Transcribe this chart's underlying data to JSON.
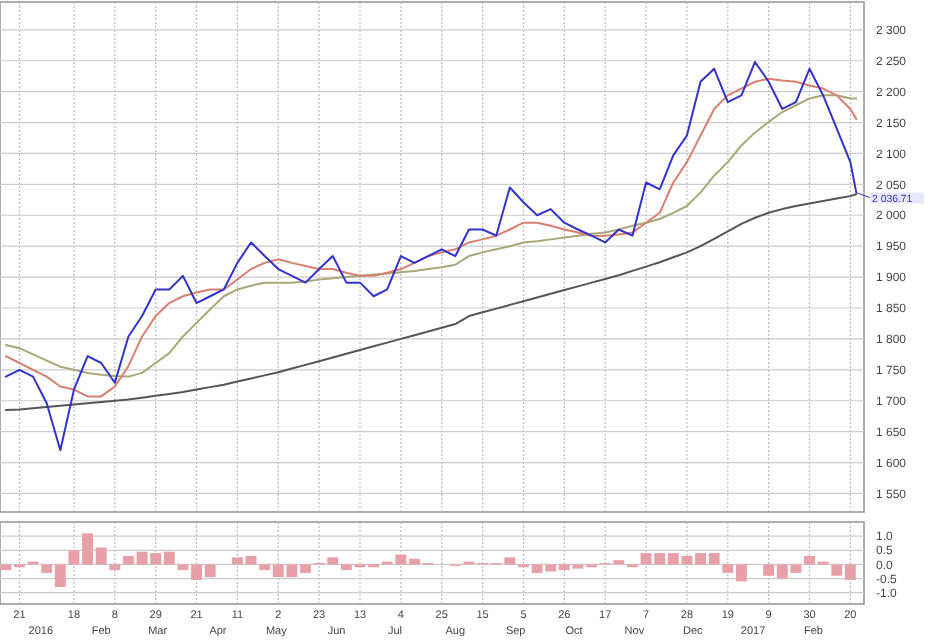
{
  "chart_data": [
    {
      "type": "line",
      "tick_labels": "y",
      "grid": true,
      "xlim": [
        "2015-12-11",
        "2017-02-27"
      ],
      "xticks": [
        {
          "value": "2015-12-21",
          "label": null
        },
        {
          "value": "2016-01-18",
          "label": null
        },
        {
          "value": "2016-02-08",
          "label": null
        },
        {
          "value": "2016-02-29",
          "label": null
        },
        {
          "value": "2016-03-21",
          "label": null
        },
        {
          "value": "2016-04-11",
          "label": null
        },
        {
          "value": "2016-05-02",
          "label": null
        },
        {
          "value": "2016-05-23",
          "label": null
        },
        {
          "value": "2016-06-13",
          "label": null
        },
        {
          "value": "2016-07-04",
          "label": null
        },
        {
          "value": "2016-07-25",
          "label": null
        },
        {
          "value": "2016-08-15",
          "label": null
        },
        {
          "value": "2016-09-05",
          "label": null
        },
        {
          "value": "2016-09-26",
          "label": null
        },
        {
          "value": "2016-10-17",
          "label": null
        },
        {
          "value": "2016-11-07",
          "label": null
        },
        {
          "value": "2016-11-28",
          "label": null
        },
        {
          "value": "2016-12-19",
          "label": null
        },
        {
          "value": "2017-01-09",
          "label": null
        },
        {
          "value": "2017-01-30",
          "label": null
        },
        {
          "value": "2017-02-20",
          "label": null
        }
      ],
      "ylim": [
        1520,
        2345
      ],
      "yticks": [
        {
          "value": 1550,
          "label": "1 550"
        },
        {
          "value": 1600,
          "label": "1 600"
        },
        {
          "value": 1650,
          "label": "1 650"
        },
        {
          "value": 1700,
          "label": "1 700"
        },
        {
          "value": 1750,
          "label": "1 750"
        },
        {
          "value": 1800,
          "label": "1 800"
        },
        {
          "value": 1850,
          "label": "1 850"
        },
        {
          "value": 1900,
          "label": "1 900"
        },
        {
          "value": 1950,
          "label": "1 950"
        },
        {
          "value": 2000,
          "label": "2 000"
        },
        {
          "value": 2050,
          "label": "2 050"
        },
        {
          "value": 2100,
          "label": "2 100"
        },
        {
          "value": 2150,
          "label": "2 150"
        },
        {
          "value": 2200,
          "label": "2 200"
        },
        {
          "value": 2250,
          "label": "2 250"
        },
        {
          "value": 2300,
          "label": "2 300"
        }
      ],
      "x": [
        "2015-12-14",
        "2015-12-21",
        "2015-12-28",
        "2016-01-04",
        "2016-01-11",
        "2016-01-18",
        "2016-01-25",
        "2016-02-01",
        "2016-02-08",
        "2016-02-15",
        "2016-02-22",
        "2016-02-29",
        "2016-03-07",
        "2016-03-14",
        "2016-03-21",
        "2016-03-28",
        "2016-04-04",
        "2016-04-11",
        "2016-04-18",
        "2016-04-25",
        "2016-05-02",
        "2016-05-09",
        "2016-05-16",
        "2016-05-23",
        "2016-05-30",
        "2016-06-06",
        "2016-06-13",
        "2016-06-20",
        "2016-06-27",
        "2016-07-04",
        "2016-07-11",
        "2016-07-18",
        "2016-07-25",
        "2016-08-01",
        "2016-08-08",
        "2016-08-15",
        "2016-08-22",
        "2016-08-29",
        "2016-09-05",
        "2016-09-12",
        "2016-09-19",
        "2016-09-26",
        "2016-10-03",
        "2016-10-10",
        "2016-10-17",
        "2016-10-24",
        "2016-10-31",
        "2016-11-07",
        "2016-11-14",
        "2016-11-21",
        "2016-11-28",
        "2016-12-05",
        "2016-12-12",
        "2016-12-19",
        "2016-12-26",
        "2017-01-02",
        "2017-01-09",
        "2017-01-16",
        "2017-01-23",
        "2017-01-30",
        "2017-02-06",
        "2017-02-13",
        "2017-02-20",
        "2017-02-23"
      ],
      "series": [
        {
          "color": "#555555",
          "values": [
            1685,
            1686,
            1688,
            1690,
            1692,
            1694,
            1696,
            1698,
            1700,
            1702,
            1705,
            1708,
            1711,
            1714,
            1718,
            1722,
            1726,
            1731,
            1736,
            1741,
            1746,
            1752,
            1758,
            1764,
            1770,
            1776,
            1782,
            1788,
            1794,
            1800,
            1806,
            1812,
            1818,
            1824,
            1837,
            1843,
            1849,
            1855,
            1861,
            1867,
            1873,
            1879,
            1885,
            1891,
            1897,
            1903,
            1910,
            1917,
            1924,
            1932,
            1940,
            1950,
            1962,
            1974,
            1986,
            1996,
            2004,
            2010,
            2015,
            2019,
            2023,
            2027,
            2031,
            2034
          ]
        },
        {
          "color": "#a8a878",
          "values": [
            1790,
            1785,
            1775,
            1765,
            1755,
            1750,
            1745,
            1742,
            1740,
            1739,
            1745,
            1761,
            1777,
            1804,
            1826,
            1848,
            1869,
            1880,
            1886,
            1891,
            1891,
            1891,
            1893,
            1896,
            1898,
            1900,
            1902,
            1904,
            1906,
            1908,
            1910,
            1913,
            1916,
            1920,
            1934,
            1940,
            1945,
            1950,
            1956,
            1958,
            1961,
            1964,
            1967,
            1970,
            1972,
            1977,
            1983,
            1988,
            1994,
            2004,
            2015,
            2037,
            2064,
            2086,
            2113,
            2134,
            2151,
            2167,
            2178,
            2189,
            2194,
            2194,
            2189,
            2189
          ]
        },
        {
          "color": "#d88070",
          "values": [
            1772,
            1761,
            1750,
            1739,
            1723,
            1718,
            1707,
            1707,
            1723,
            1756,
            1804,
            1837,
            1858,
            1869,
            1875,
            1880,
            1880,
            1896,
            1913,
            1923,
            1929,
            1923,
            1918,
            1913,
            1913,
            1907,
            1902,
            1902,
            1907,
            1913,
            1923,
            1934,
            1940,
            1945,
            1956,
            1961,
            1967,
            1977,
            1988,
            1988,
            1983,
            1977,
            1972,
            1967,
            1967,
            1969,
            1972,
            1988,
            2004,
            2053,
            2086,
            2129,
            2172,
            2194,
            2205,
            2216,
            2221,
            2218,
            2216,
            2210,
            2205,
            2194,
            2172,
            2156
          ]
        },
        {
          "color": "#3333cc",
          "values": [
            1739,
            1750,
            1739,
            1696,
            1620,
            1718,
            1772,
            1761,
            1729,
            1804,
            1837,
            1880,
            1880,
            1902,
            1858,
            1869,
            1880,
            1923,
            1956,
            1934,
            1913,
            1902,
            1891,
            1913,
            1934,
            1891,
            1891,
            1869,
            1880,
            1934,
            1923,
            1934,
            1945,
            1934,
            1977,
            1977,
            1967,
            2045,
            2021,
            2000,
            2010,
            1988,
            1977,
            1967,
            1956,
            1977,
            1967,
            2053,
            2042,
            2097,
            2129,
            2216,
            2237,
            2183,
            2194,
            2248,
            2216,
            2172,
            2183,
            2237,
            2194,
            2140,
            2086,
            2037
          ]
        }
      ],
      "annotations": [
        {
          "text": "2 036.71",
          "x": "2017-02-23",
          "y": 2036.71
        }
      ]
    },
    {
      "type": "bar",
      "grid": true,
      "xlim": [
        "2015-12-11",
        "2017-02-27"
      ],
      "xticks": [
        {
          "value": "2015-12-21",
          "label": "21"
        },
        {
          "value": "2016-01-18",
          "label": "18"
        },
        {
          "value": "2016-02-08",
          "label": "8"
        },
        {
          "value": "2016-02-29",
          "label": "29"
        },
        {
          "value": "2016-03-21",
          "label": "21"
        },
        {
          "value": "2016-04-11",
          "label": "11"
        },
        {
          "value": "2016-05-02",
          "label": "2"
        },
        {
          "value": "2016-05-23",
          "label": "23"
        },
        {
          "value": "2016-06-13",
          "label": "13"
        },
        {
          "value": "2016-07-04",
          "label": "4"
        },
        {
          "value": "2016-07-25",
          "label": "25"
        },
        {
          "value": "2016-08-15",
          "label": "15"
        },
        {
          "value": "2016-09-05",
          "label": "5"
        },
        {
          "value": "2016-09-26",
          "label": "26"
        },
        {
          "value": "2016-10-17",
          "label": "17"
        },
        {
          "value": "2016-11-07",
          "label": "7"
        },
        {
          "value": "2016-11-28",
          "label": "28"
        },
        {
          "value": "2016-12-19",
          "label": "19"
        },
        {
          "value": "2017-01-09",
          "label": "9"
        },
        {
          "value": "2017-01-30",
          "label": "30"
        },
        {
          "value": "2017-02-20",
          "label": "20"
        }
      ],
      "x2lim": [
        "2015-12-11",
        "2017-02-27"
      ],
      "x2ticks": [
        {
          "value": "2016-01-01",
          "label": "2016"
        },
        {
          "value": "2016-02-01",
          "label": "Feb"
        },
        {
          "value": "2016-03-01",
          "label": "Mar"
        },
        {
          "value": "2016-04-01",
          "label": "Apr"
        },
        {
          "value": "2016-05-01",
          "label": "May"
        },
        {
          "value": "2016-06-01",
          "label": "Jun"
        },
        {
          "value": "2016-07-01",
          "label": "Jul"
        },
        {
          "value": "2016-08-01",
          "label": "Aug"
        },
        {
          "value": "2016-09-01",
          "label": "Sep"
        },
        {
          "value": "2016-10-01",
          "label": "Oct"
        },
        {
          "value": "2016-11-01",
          "label": "Nov"
        },
        {
          "value": "2016-12-01",
          "label": "Dec"
        },
        {
          "value": "2017-01-01",
          "label": "2017"
        },
        {
          "value": "2017-02-01",
          "label": "Feb"
        }
      ],
      "ylim": [
        -1.4,
        1.5
      ],
      "yticks": [
        {
          "value": -1,
          "label": "-1.0"
        },
        {
          "value": -0.5,
          "label": "-0.5"
        },
        {
          "value": 0,
          "label": "0.0"
        },
        {
          "value": 0.5,
          "label": "0.5"
        },
        {
          "value": 1,
          "label": "1.0"
        }
      ],
      "x": [
        "2015-12-14",
        "2015-12-21",
        "2015-12-28",
        "2016-01-04",
        "2016-01-11",
        "2016-01-18",
        "2016-01-25",
        "2016-02-01",
        "2016-02-08",
        "2016-02-15",
        "2016-02-22",
        "2016-02-29",
        "2016-03-07",
        "2016-03-14",
        "2016-03-21",
        "2016-03-28",
        "2016-04-04",
        "2016-04-11",
        "2016-04-18",
        "2016-04-25",
        "2016-05-02",
        "2016-05-09",
        "2016-05-16",
        "2016-05-23",
        "2016-05-30",
        "2016-06-06",
        "2016-06-13",
        "2016-06-20",
        "2016-06-27",
        "2016-07-04",
        "2016-07-11",
        "2016-07-18",
        "2016-07-25",
        "2016-08-01",
        "2016-08-08",
        "2016-08-15",
        "2016-08-22",
        "2016-08-29",
        "2016-09-05",
        "2016-09-12",
        "2016-09-19",
        "2016-09-26",
        "2016-10-03",
        "2016-10-10",
        "2016-10-17",
        "2016-10-24",
        "2016-10-31",
        "2016-11-07",
        "2016-11-14",
        "2016-11-21",
        "2016-11-28",
        "2016-12-05",
        "2016-12-12",
        "2016-12-19",
        "2016-12-26",
        "2017-01-02",
        "2017-01-09",
        "2017-01-16",
        "2017-01-23",
        "2017-01-30",
        "2017-02-06",
        "2017-02-13",
        "2017-02-20"
      ],
      "color": "#e8a0a8",
      "values": [
        -0.2,
        -0.1,
        0.1,
        -0.3,
        -0.8,
        0.5,
        1.1,
        0.6,
        -0.2,
        0.3,
        0.45,
        0.4,
        0.45,
        -0.2,
        -0.55,
        -0.45,
        0,
        0.25,
        0.3,
        -0.2,
        -0.45,
        -0.45,
        -0.3,
        0.05,
        0.25,
        -0.2,
        -0.1,
        -0.1,
        0.1,
        0.35,
        0.2,
        0.05,
        0,
        -0.05,
        0.1,
        0.05,
        0.05,
        0.25,
        -0.1,
        -0.3,
        -0.25,
        -0.2,
        -0.15,
        -0.1,
        0.05,
        0.15,
        -0.1,
        0.4,
        0.4,
        0.4,
        0.3,
        0.4,
        0.4,
        -0.3,
        -0.6,
        0,
        -0.4,
        -0.5,
        -0.3,
        0.3,
        0.1,
        -0.4,
        -0.55
      ]
    }
  ]
}
